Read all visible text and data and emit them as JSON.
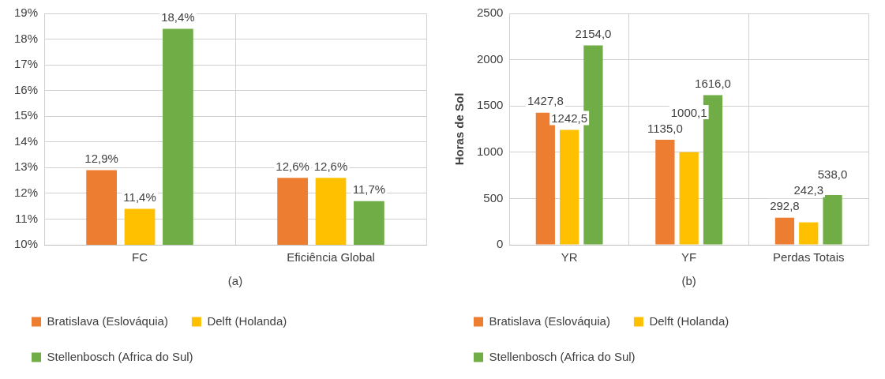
{
  "chart_data": [
    {
      "type": "bar",
      "xlabel": "(a)",
      "categories": [
        "FC",
        "Eficiência Global"
      ],
      "series": [
        {
          "name": "Bratislava (Eslováquia)",
          "color": "#ed7d31",
          "values": [
            12.9,
            12.6
          ],
          "value_labels": [
            "12,9%",
            "12,6%"
          ]
        },
        {
          "name": "Delft (Holanda)",
          "color": "#ffc000",
          "values": [
            11.4,
            12.6
          ],
          "value_labels": [
            "11,4%",
            "12,6%"
          ]
        },
        {
          "name": "Stellenbosch (Africa do Sul)",
          "color": "#70ad47",
          "values": [
            18.4,
            11.7
          ],
          "value_labels": [
            "18,4%",
            "11,7%"
          ]
        }
      ],
      "ylim": [
        10,
        19
      ],
      "yticks": [
        {
          "value": 10,
          "label": "10%"
        },
        {
          "value": 11,
          "label": "11%"
        },
        {
          "value": 12,
          "label": "12%"
        },
        {
          "value": 13,
          "label": "13%"
        },
        {
          "value": 14,
          "label": "14%"
        },
        {
          "value": 15,
          "label": "15%"
        },
        {
          "value": 16,
          "label": "16%"
        },
        {
          "value": 17,
          "label": "17%"
        },
        {
          "value": 18,
          "label": "18%"
        },
        {
          "value": 19,
          "label": "19%"
        }
      ],
      "grid": true,
      "legend": "bottom"
    },
    {
      "type": "bar",
      "xlabel": "(b)",
      "ylabel": "Horas de Sol",
      "categories": [
        "YR",
        "YF",
        "Perdas Totais"
      ],
      "series": [
        {
          "name": "Bratislava (Eslováquia)",
          "color": "#ed7d31",
          "values": [
            1427.8,
            1135.0,
            292.8
          ],
          "value_labels": [
            "1427,8",
            "1135,0",
            "292,8"
          ]
        },
        {
          "name": "Delft (Holanda)",
          "color": "#ffc000",
          "values": [
            1242.5,
            1000.1,
            242.3
          ],
          "value_labels": [
            "1242,5",
            "1000,1",
            "242,3"
          ]
        },
        {
          "name": "Stellenbosch (Africa do Sul)",
          "color": "#70ad47",
          "values": [
            2154.0,
            1616.0,
            538.0
          ],
          "value_labels": [
            "2154,0",
            "1616,0",
            "538,0"
          ]
        }
      ],
      "ylim": [
        0,
        2500
      ],
      "yticks": [
        0,
        500,
        1000,
        1500,
        2000,
        2500
      ],
      "grid": true,
      "legend": "bottom"
    }
  ]
}
